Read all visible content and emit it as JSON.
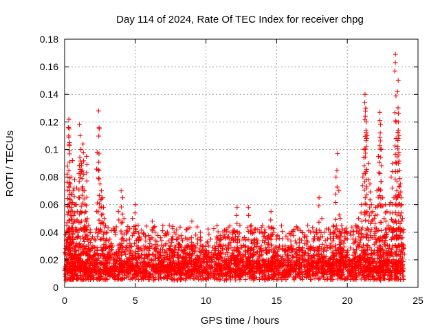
{
  "chart_data": {
    "type": "scatter",
    "title": "Day 114 of 2024, Rate Of TEC Index for receiver chpg",
    "xlabel": "GPS time / hours",
    "ylabel": "ROTI / TECUs",
    "xlim": [
      0,
      25
    ],
    "ylim": [
      0,
      0.18
    ],
    "xticks": [
      0,
      5,
      10,
      15,
      20,
      25
    ],
    "xtick_labels": [
      "0",
      "5",
      "10",
      "15",
      "20",
      "25"
    ],
    "yticks": [
      0,
      0.02,
      0.04,
      0.06,
      0.08,
      0.1,
      0.12,
      0.14,
      0.16,
      0.18
    ],
    "ytick_labels": [
      "0",
      "0.02",
      "0.04",
      "0.06",
      "0.08",
      "0.1",
      "0.12",
      "0.14",
      "0.16",
      "0.18"
    ],
    "grid": true,
    "marker": "+",
    "color": "#ff0000",
    "series": [
      {
        "name": "ROTI",
        "points": [
          [
            0.05,
            0.015
          ],
          [
            0.1,
            0.03
          ],
          [
            0.15,
            0.045
          ],
          [
            0.2,
            0.088
          ],
          [
            0.25,
            0.06
          ],
          [
            0.3,
            0.122
          ],
          [
            0.32,
            0.115
          ],
          [
            0.35,
            0.105
          ],
          [
            0.4,
            0.075
          ],
          [
            0.45,
            0.08
          ],
          [
            0.5,
            0.058
          ],
          [
            0.55,
            0.092
          ],
          [
            0.6,
            0.07
          ],
          [
            0.65,
            0.052
          ],
          [
            0.7,
            0.078
          ],
          [
            0.75,
            0.06
          ],
          [
            0.8,
            0.048
          ],
          [
            0.85,
            0.072
          ],
          [
            0.9,
            0.055
          ],
          [
            1.0,
            0.065
          ],
          [
            1.05,
            0.118
          ],
          [
            1.1,
            0.11
          ],
          [
            1.15,
            0.1
          ],
          [
            1.2,
            0.09
          ],
          [
            1.25,
            0.085
          ],
          [
            1.3,
            0.104
          ],
          [
            1.35,
            0.082
          ],
          [
            1.4,
            0.07
          ],
          [
            1.45,
            0.06
          ],
          [
            1.5,
            0.055
          ],
          [
            1.55,
            0.095
          ],
          [
            1.6,
            0.05
          ],
          [
            1.7,
            0.045
          ],
          [
            1.8,
            0.04
          ],
          [
            1.9,
            0.035
          ],
          [
            2.0,
            0.03
          ],
          [
            2.1,
            0.035
          ],
          [
            2.2,
            0.04
          ],
          [
            2.3,
            0.098
          ],
          [
            2.4,
            0.128
          ],
          [
            2.45,
            0.115
          ],
          [
            2.5,
            0.075
          ],
          [
            2.6,
            0.07
          ],
          [
            2.7,
            0.065
          ],
          [
            2.75,
            0.058
          ],
          [
            2.8,
            0.05
          ],
          [
            2.9,
            0.045
          ],
          [
            3.0,
            0.04
          ],
          [
            3.2,
            0.035
          ],
          [
            3.4,
            0.03
          ],
          [
            3.6,
            0.04
          ],
          [
            3.8,
            0.055
          ],
          [
            4.0,
            0.07
          ],
          [
            4.1,
            0.065
          ],
          [
            4.2,
            0.05
          ],
          [
            4.4,
            0.04
          ],
          [
            4.6,
            0.035
          ],
          [
            4.8,
            0.05
          ],
          [
            5.0,
            0.06
          ],
          [
            5.2,
            0.045
          ],
          [
            5.4,
            0.035
          ],
          [
            5.6,
            0.03
          ],
          [
            5.8,
            0.028
          ],
          [
            6.0,
            0.035
          ],
          [
            6.2,
            0.048
          ],
          [
            6.4,
            0.04
          ],
          [
            6.6,
            0.03
          ],
          [
            6.8,
            0.025
          ],
          [
            7.0,
            0.03
          ],
          [
            7.2,
            0.038
          ],
          [
            7.4,
            0.045
          ],
          [
            7.6,
            0.035
          ],
          [
            7.8,
            0.03
          ],
          [
            8.0,
            0.035
          ],
          [
            8.2,
            0.03
          ],
          [
            8.4,
            0.025
          ],
          [
            8.6,
            0.03
          ],
          [
            8.8,
            0.035
          ],
          [
            9.0,
            0.048
          ],
          [
            9.2,
            0.03
          ],
          [
            9.4,
            0.035
          ],
          [
            9.6,
            0.04
          ],
          [
            9.8,
            0.03
          ],
          [
            10.0,
            0.025
          ],
          [
            10.2,
            0.03
          ],
          [
            10.4,
            0.025
          ],
          [
            10.6,
            0.03
          ],
          [
            10.8,
            0.035
          ],
          [
            11.0,
            0.03
          ],
          [
            11.2,
            0.025
          ],
          [
            11.4,
            0.03
          ],
          [
            11.6,
            0.028
          ],
          [
            11.8,
            0.035
          ],
          [
            12.0,
            0.04
          ],
          [
            12.2,
            0.058
          ],
          [
            12.4,
            0.045
          ],
          [
            12.6,
            0.035
          ],
          [
            12.8,
            0.03
          ],
          [
            13.0,
            0.058
          ],
          [
            13.2,
            0.045
          ],
          [
            13.4,
            0.04
          ],
          [
            13.6,
            0.035
          ],
          [
            13.8,
            0.04
          ],
          [
            14.0,
            0.045
          ],
          [
            14.2,
            0.04
          ],
          [
            14.4,
            0.035
          ],
          [
            14.6,
            0.055
          ],
          [
            14.8,
            0.04
          ],
          [
            15.0,
            0.035
          ],
          [
            15.2,
            0.03
          ],
          [
            15.4,
            0.028
          ],
          [
            15.6,
            0.03
          ],
          [
            15.8,
            0.035
          ],
          [
            16.0,
            0.03
          ],
          [
            16.2,
            0.028
          ],
          [
            16.4,
            0.032
          ],
          [
            16.6,
            0.035
          ],
          [
            16.8,
            0.04
          ],
          [
            17.0,
            0.038
          ],
          [
            17.2,
            0.045
          ],
          [
            17.4,
            0.04
          ],
          [
            17.6,
            0.035
          ],
          [
            17.8,
            0.04
          ],
          [
            18.0,
            0.065
          ],
          [
            18.2,
            0.05
          ],
          [
            18.4,
            0.04
          ],
          [
            18.6,
            0.035
          ],
          [
            18.8,
            0.04
          ],
          [
            19.0,
            0.045
          ],
          [
            19.2,
            0.08
          ],
          [
            19.3,
            0.097
          ],
          [
            19.4,
            0.07
          ],
          [
            19.5,
            0.05
          ],
          [
            19.6,
            0.045
          ],
          [
            19.8,
            0.04
          ],
          [
            20.0,
            0.035
          ],
          [
            20.2,
            0.04
          ],
          [
            20.4,
            0.035
          ],
          [
            20.6,
            0.045
          ],
          [
            20.8,
            0.05
          ],
          [
            21.0,
            0.06
          ],
          [
            21.1,
            0.08
          ],
          [
            21.2,
            0.1
          ],
          [
            21.25,
            0.14
          ],
          [
            21.3,
            0.13
          ],
          [
            21.35,
            0.12
          ],
          [
            21.4,
            0.11
          ],
          [
            21.5,
            0.09
          ],
          [
            21.6,
            0.075
          ],
          [
            21.7,
            0.06
          ],
          [
            21.8,
            0.055
          ],
          [
            21.9,
            0.05
          ],
          [
            22.0,
            0.058
          ],
          [
            22.1,
            0.07
          ],
          [
            22.2,
            0.095
          ],
          [
            22.3,
            0.127
          ],
          [
            22.35,
            0.118
          ],
          [
            22.4,
            0.1
          ],
          [
            22.5,
            0.065
          ],
          [
            22.6,
            0.05
          ],
          [
            22.7,
            0.06
          ],
          [
            22.8,
            0.055
          ],
          [
            22.9,
            0.045
          ],
          [
            23.0,
            0.06
          ],
          [
            23.1,
            0.08
          ],
          [
            23.2,
            0.09
          ],
          [
            23.3,
            0.065
          ],
          [
            23.4,
            0.169
          ],
          [
            23.45,
            0.12
          ],
          [
            23.5,
            0.07
          ],
          [
            23.55,
            0.142
          ],
          [
            23.6,
            0.15
          ],
          [
            23.65,
            0.11
          ],
          [
            23.7,
            0.085
          ],
          [
            23.75,
            0.075
          ],
          [
            23.8,
            0.065
          ],
          [
            23.85,
            0.06
          ],
          [
            23.9,
            0.05
          ],
          [
            23.95,
            0.04
          ],
          [
            24.0,
            0.03
          ]
        ],
        "baseline_band": [
          0.005,
          0.032
        ]
      }
    ]
  }
}
